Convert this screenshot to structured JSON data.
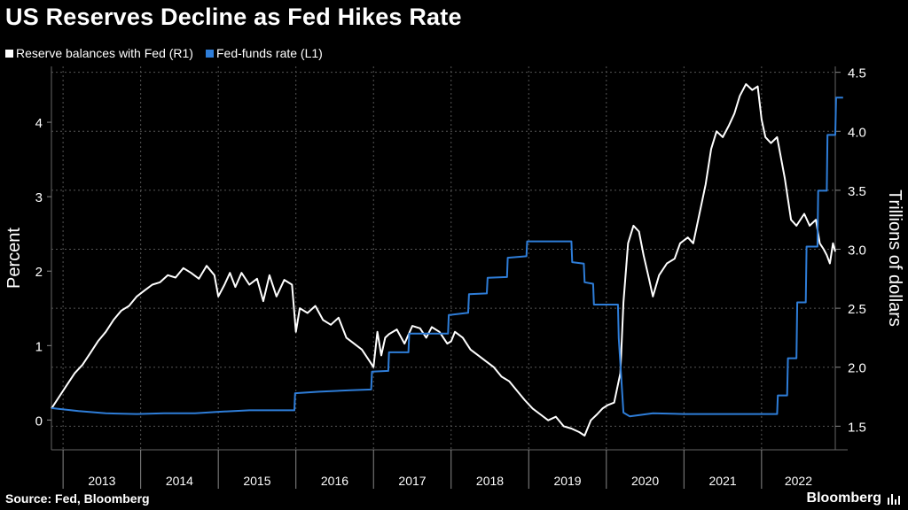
{
  "title": "US Reserves Decline as Fed Hikes Rate",
  "source": "Source: Fed, Bloomberg",
  "brand": "Bloomberg",
  "chart_data": {
    "type": "line",
    "title": "US Reserves Decline as Fed Hikes Rate",
    "x_range": [
      2012.85,
      2022.95
    ],
    "year_labels": [
      "2013",
      "2014",
      "2015",
      "2016",
      "2017",
      "2018",
      "2019",
      "2020",
      "2021",
      "2022"
    ],
    "left_axis": {
      "label": "Percent",
      "ticks": [
        "0",
        "1",
        "2",
        "3",
        "4"
      ],
      "range": [
        -0.4,
        4.75
      ]
    },
    "right_axis": {
      "label": "Trillions of dollars",
      "ticks": [
        "1.5",
        "2.0",
        "2.5",
        "3.0",
        "3.5",
        "4.0",
        "4.5"
      ],
      "range": [
        1.3,
        4.55
      ]
    },
    "series": [
      {
        "name": "Reserve balances with Fed (R1)",
        "axis": "right",
        "color": "#ffffff",
        "points": [
          [
            2012.85,
            1.65
          ],
          [
            2012.95,
            1.75
          ],
          [
            2013.05,
            1.85
          ],
          [
            2013.15,
            1.95
          ],
          [
            2013.25,
            2.02
          ],
          [
            2013.35,
            2.12
          ],
          [
            2013.45,
            2.22
          ],
          [
            2013.55,
            2.3
          ],
          [
            2013.65,
            2.4
          ],
          [
            2013.75,
            2.48
          ],
          [
            2013.85,
            2.52
          ],
          [
            2013.95,
            2.6
          ],
          [
            2014.05,
            2.65
          ],
          [
            2014.15,
            2.7
          ],
          [
            2014.25,
            2.72
          ],
          [
            2014.35,
            2.78
          ],
          [
            2014.45,
            2.76
          ],
          [
            2014.55,
            2.84
          ],
          [
            2014.65,
            2.8
          ],
          [
            2014.75,
            2.75
          ],
          [
            2014.85,
            2.86
          ],
          [
            2014.95,
            2.78
          ],
          [
            2015.0,
            2.6
          ],
          [
            2015.08,
            2.7
          ],
          [
            2015.15,
            2.8
          ],
          [
            2015.22,
            2.68
          ],
          [
            2015.3,
            2.8
          ],
          [
            2015.4,
            2.7
          ],
          [
            2015.5,
            2.75
          ],
          [
            2015.58,
            2.56
          ],
          [
            2015.66,
            2.78
          ],
          [
            2015.75,
            2.6
          ],
          [
            2015.85,
            2.74
          ],
          [
            2015.95,
            2.7
          ],
          [
            2016.0,
            2.3
          ],
          [
            2016.05,
            2.5
          ],
          [
            2016.15,
            2.46
          ],
          [
            2016.25,
            2.52
          ],
          [
            2016.35,
            2.4
          ],
          [
            2016.45,
            2.36
          ],
          [
            2016.55,
            2.42
          ],
          [
            2016.65,
            2.25
          ],
          [
            2016.75,
            2.2
          ],
          [
            2016.85,
            2.15
          ],
          [
            2016.95,
            2.05
          ],
          [
            2017.0,
            2.0
          ],
          [
            2017.05,
            2.3
          ],
          [
            2017.1,
            2.1
          ],
          [
            2017.15,
            2.25
          ],
          [
            2017.2,
            2.28
          ],
          [
            2017.3,
            2.32
          ],
          [
            2017.4,
            2.2
          ],
          [
            2017.5,
            2.35
          ],
          [
            2017.6,
            2.33
          ],
          [
            2017.68,
            2.25
          ],
          [
            2017.75,
            2.34
          ],
          [
            2017.85,
            2.3
          ],
          [
            2017.95,
            2.2
          ],
          [
            2018.0,
            2.22
          ],
          [
            2018.05,
            2.3
          ],
          [
            2018.15,
            2.25
          ],
          [
            2018.25,
            2.15
          ],
          [
            2018.35,
            2.1
          ],
          [
            2018.45,
            2.05
          ],
          [
            2018.55,
            2.0
          ],
          [
            2018.65,
            1.92
          ],
          [
            2018.75,
            1.88
          ],
          [
            2018.85,
            1.8
          ],
          [
            2018.95,
            1.72
          ],
          [
            2019.05,
            1.65
          ],
          [
            2019.15,
            1.6
          ],
          [
            2019.25,
            1.55
          ],
          [
            2019.35,
            1.58
          ],
          [
            2019.45,
            1.5
          ],
          [
            2019.55,
            1.48
          ],
          [
            2019.65,
            1.45
          ],
          [
            2019.72,
            1.42
          ],
          [
            2019.8,
            1.55
          ],
          [
            2019.88,
            1.6
          ],
          [
            2019.95,
            1.65
          ],
          [
            2020.02,
            1.68
          ],
          [
            2020.1,
            1.7
          ],
          [
            2020.18,
            1.95
          ],
          [
            2020.22,
            2.55
          ],
          [
            2020.28,
            3.05
          ],
          [
            2020.35,
            3.2
          ],
          [
            2020.42,
            3.15
          ],
          [
            2020.48,
            2.95
          ],
          [
            2020.55,
            2.75
          ],
          [
            2020.6,
            2.6
          ],
          [
            2020.68,
            2.78
          ],
          [
            2020.78,
            2.88
          ],
          [
            2020.88,
            2.92
          ],
          [
            2020.95,
            3.05
          ],
          [
            2021.05,
            3.1
          ],
          [
            2021.12,
            3.05
          ],
          [
            2021.2,
            3.3
          ],
          [
            2021.28,
            3.55
          ],
          [
            2021.35,
            3.85
          ],
          [
            2021.42,
            4.0
          ],
          [
            2021.5,
            3.95
          ],
          [
            2021.58,
            4.05
          ],
          [
            2021.65,
            4.15
          ],
          [
            2021.72,
            4.3
          ],
          [
            2021.8,
            4.4
          ],
          [
            2021.88,
            4.35
          ],
          [
            2021.95,
            4.38
          ],
          [
            2022.0,
            4.1
          ],
          [
            2022.05,
            3.95
          ],
          [
            2022.12,
            3.9
          ],
          [
            2022.2,
            3.95
          ],
          [
            2022.3,
            3.6
          ],
          [
            2022.38,
            3.25
          ],
          [
            2022.45,
            3.2
          ],
          [
            2022.55,
            3.3
          ],
          [
            2022.62,
            3.2
          ],
          [
            2022.7,
            3.25
          ],
          [
            2022.75,
            3.05
          ],
          [
            2022.8,
            3.0
          ],
          [
            2022.84,
            2.95
          ],
          [
            2022.88,
            2.88
          ],
          [
            2022.92,
            3.05
          ],
          [
            2022.95,
            2.98
          ]
        ]
      },
      {
        "name": "Fed-funds rate (L1)",
        "axis": "left",
        "color": "#2e7dd8",
        "points": [
          [
            2012.85,
            0.16
          ],
          [
            2013.2,
            0.12
          ],
          [
            2013.55,
            0.09
          ],
          [
            2013.95,
            0.08
          ],
          [
            2014.3,
            0.09
          ],
          [
            2014.7,
            0.09
          ],
          [
            2015.0,
            0.11
          ],
          [
            2015.4,
            0.13
          ],
          [
            2015.98,
            0.13
          ],
          [
            2015.99,
            0.36
          ],
          [
            2016.3,
            0.38
          ],
          [
            2016.7,
            0.4
          ],
          [
            2016.97,
            0.41
          ],
          [
            2016.98,
            0.65
          ],
          [
            2017.19,
            0.66
          ],
          [
            2017.2,
            0.91
          ],
          [
            2017.45,
            0.91
          ],
          [
            2017.46,
            1.16
          ],
          [
            2017.96,
            1.16
          ],
          [
            2017.97,
            1.41
          ],
          [
            2018.22,
            1.44
          ],
          [
            2018.23,
            1.69
          ],
          [
            2018.46,
            1.7
          ],
          [
            2018.47,
            1.91
          ],
          [
            2018.72,
            1.92
          ],
          [
            2018.73,
            2.18
          ],
          [
            2018.97,
            2.2
          ],
          [
            2018.98,
            2.4
          ],
          [
            2019.55,
            2.4
          ],
          [
            2019.56,
            2.12
          ],
          [
            2019.71,
            2.1
          ],
          [
            2019.72,
            1.85
          ],
          [
            2019.83,
            1.83
          ],
          [
            2019.84,
            1.55
          ],
          [
            2020.15,
            1.55
          ],
          [
            2020.16,
            1.1
          ],
          [
            2020.22,
            0.1
          ],
          [
            2020.3,
            0.05
          ],
          [
            2020.6,
            0.09
          ],
          [
            2021.0,
            0.08
          ],
          [
            2021.5,
            0.08
          ],
          [
            2021.9,
            0.08
          ],
          [
            2022.2,
            0.08
          ],
          [
            2022.21,
            0.33
          ],
          [
            2022.33,
            0.33
          ],
          [
            2022.34,
            0.83
          ],
          [
            2022.45,
            0.83
          ],
          [
            2022.46,
            1.58
          ],
          [
            2022.57,
            1.58
          ],
          [
            2022.58,
            2.33
          ],
          [
            2022.72,
            2.33
          ],
          [
            2022.73,
            3.08
          ],
          [
            2022.84,
            3.08
          ],
          [
            2022.85,
            3.83
          ],
          [
            2022.95,
            3.83
          ],
          [
            2022.96,
            4.33
          ],
          [
            2023.05,
            4.33
          ]
        ]
      }
    ],
    "grid": true
  }
}
